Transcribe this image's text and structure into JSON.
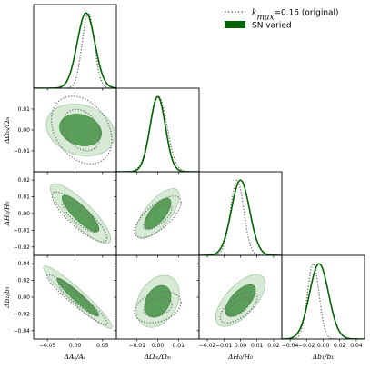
{
  "chart_data": {
    "type": "triangle",
    "legend": {
      "placement": "top-right",
      "entries": [
        {
          "name": "k_max=0.16 (original)",
          "label_main": "k",
          "label_sub": "max",
          "label_rest": "=0.16 (original)",
          "style": "dotted",
          "color": "#808080"
        },
        {
          "name": "SN varied",
          "label": "SN varied",
          "style": "filled",
          "color": "#006400"
        }
      ]
    },
    "colors": {
      "sn": "#006400",
      "sn_outer": "#d6ead6",
      "sn_inner": "#5aa05a",
      "orig": "#6e6e6e"
    },
    "parameters": [
      {
        "key": "As",
        "xlabel": "ΔAₛ/Aₛ",
        "ylabel": "",
        "range": [
          -0.075,
          0.075
        ],
        "ticks": [
          -0.05,
          0.0,
          0.05
        ],
        "tick_labels": [
          "−0.05",
          "0.00",
          "0.05"
        ]
      },
      {
        "key": "Om",
        "xlabel": "ΔΩₘ/Ωₘ",
        "ylabel": "ΔΩₘ/Ωₘ",
        "range": [
          -0.02,
          0.02
        ],
        "ticks": [
          -0.01,
          0.0,
          0.01
        ],
        "tick_labels": [
          "−0.01",
          "0.00",
          "0.01"
        ]
      },
      {
        "key": "H0",
        "xlabel": "ΔH₀/H₀",
        "ylabel": "ΔH₀/H₀",
        "range": [
          -0.025,
          0.025
        ],
        "ticks": [
          -0.02,
          -0.01,
          0.0,
          0.01,
          0.02
        ],
        "tick_labels": [
          "−0.02",
          "−0.01",
          "0.00",
          "0.01",
          "0.02"
        ]
      },
      {
        "key": "b1",
        "xlabel": "Δb₁/b₁",
        "ylabel": "Δb₁/b₁",
        "range": [
          -0.05,
          0.05
        ],
        "ticks": [
          -0.04,
          -0.02,
          0.0,
          0.02,
          0.04
        ],
        "tick_labels": [
          "−0.04",
          "−0.02",
          "0.00",
          "0.02",
          "0.04"
        ]
      }
    ],
    "marginals": [
      {
        "param": "As",
        "sn": {
          "mean": 0.02,
          "sigma": 0.016
        },
        "orig": {
          "mean": 0.024,
          "sigma": 0.011
        }
      },
      {
        "param": "Om",
        "sn": {
          "mean": 0.0,
          "sigma": 0.0037
        },
        "orig": {
          "mean": 0.0004,
          "sigma": 0.0041
        }
      },
      {
        "param": "H0",
        "sn": {
          "mean": 0.0,
          "sigma": 0.0055
        },
        "orig": {
          "mean": -0.002,
          "sigma": 0.004
        }
      },
      {
        "param": "b1",
        "sn": {
          "mean": -0.005,
          "sigma": 0.0115
        },
        "orig": {
          "mean": -0.012,
          "sigma": 0.007
        }
      }
    ],
    "contours_2d": [
      {
        "x": "As",
        "y": "Om",
        "sn": {
          "cx": 0.01,
          "cy": 0.0,
          "sx": 0.025,
          "sy": 0.005,
          "rho": -0.2
        },
        "orig": {
          "cx": 0.012,
          "cy": 0.0,
          "sx": 0.022,
          "sy": 0.0065,
          "rho": -0.3
        }
      },
      {
        "x": "As",
        "y": "H0",
        "sn": {
          "cx": 0.01,
          "cy": 0.0,
          "sx": 0.022,
          "sy": 0.0072,
          "rho": -0.85
        },
        "orig": {
          "cx": 0.008,
          "cy": -0.002,
          "sx": 0.02,
          "sy": 0.006,
          "rho": -0.85
        }
      },
      {
        "x": "As",
        "y": "b1",
        "sn": {
          "cx": 0.005,
          "cy": 0.0,
          "sx": 0.025,
          "sy": 0.015,
          "rho": -0.95
        },
        "orig": {
          "cx": 0.004,
          "cy": -0.003,
          "sx": 0.022,
          "sy": 0.012,
          "rho": -0.95
        }
      },
      {
        "x": "Om",
        "y": "H0",
        "sn": {
          "cx": 0.0,
          "cy": 0.0,
          "sx": 0.0042,
          "sy": 0.006,
          "rho": 0.7
        },
        "orig": {
          "cx": 0.0,
          "cy": -0.002,
          "sx": 0.0045,
          "sy": 0.005,
          "rho": 0.7
        }
      },
      {
        "x": "Om",
        "y": "b1",
        "sn": {
          "cx": 0.0,
          "cy": -0.005,
          "sx": 0.0042,
          "sy": 0.0125,
          "rho": 0.3
        },
        "orig": {
          "cx": 0.0,
          "cy": -0.012,
          "sx": 0.0045,
          "sy": 0.0075,
          "rho": 0.3
        }
      },
      {
        "x": "H0",
        "y": "b1",
        "sn": {
          "cx": 0.0,
          "cy": -0.004,
          "sx": 0.006,
          "sy": 0.0125,
          "rho": 0.65
        },
        "orig": {
          "cx": -0.001,
          "cy": -0.012,
          "sx": 0.0045,
          "sy": 0.0075,
          "rho": 0.65
        }
      }
    ]
  }
}
